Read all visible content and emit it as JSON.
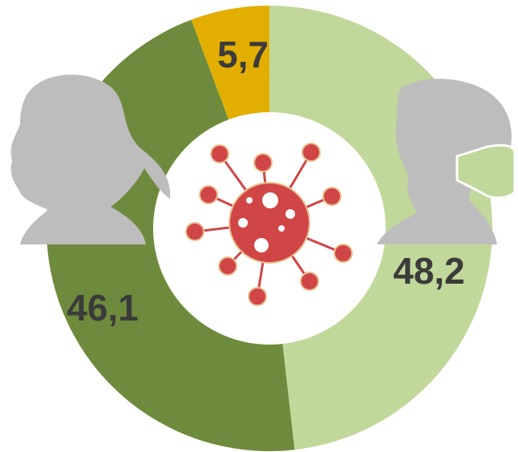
{
  "chart_data": {
    "type": "donut",
    "values": [
      48.2,
      46.1,
      5.7
    ],
    "value_labels": [
      "48,2",
      "46,1",
      "5,7"
    ],
    "colors": [
      "#c0d89a",
      "#6e8b3d",
      "#e2ae00"
    ]
  }
}
